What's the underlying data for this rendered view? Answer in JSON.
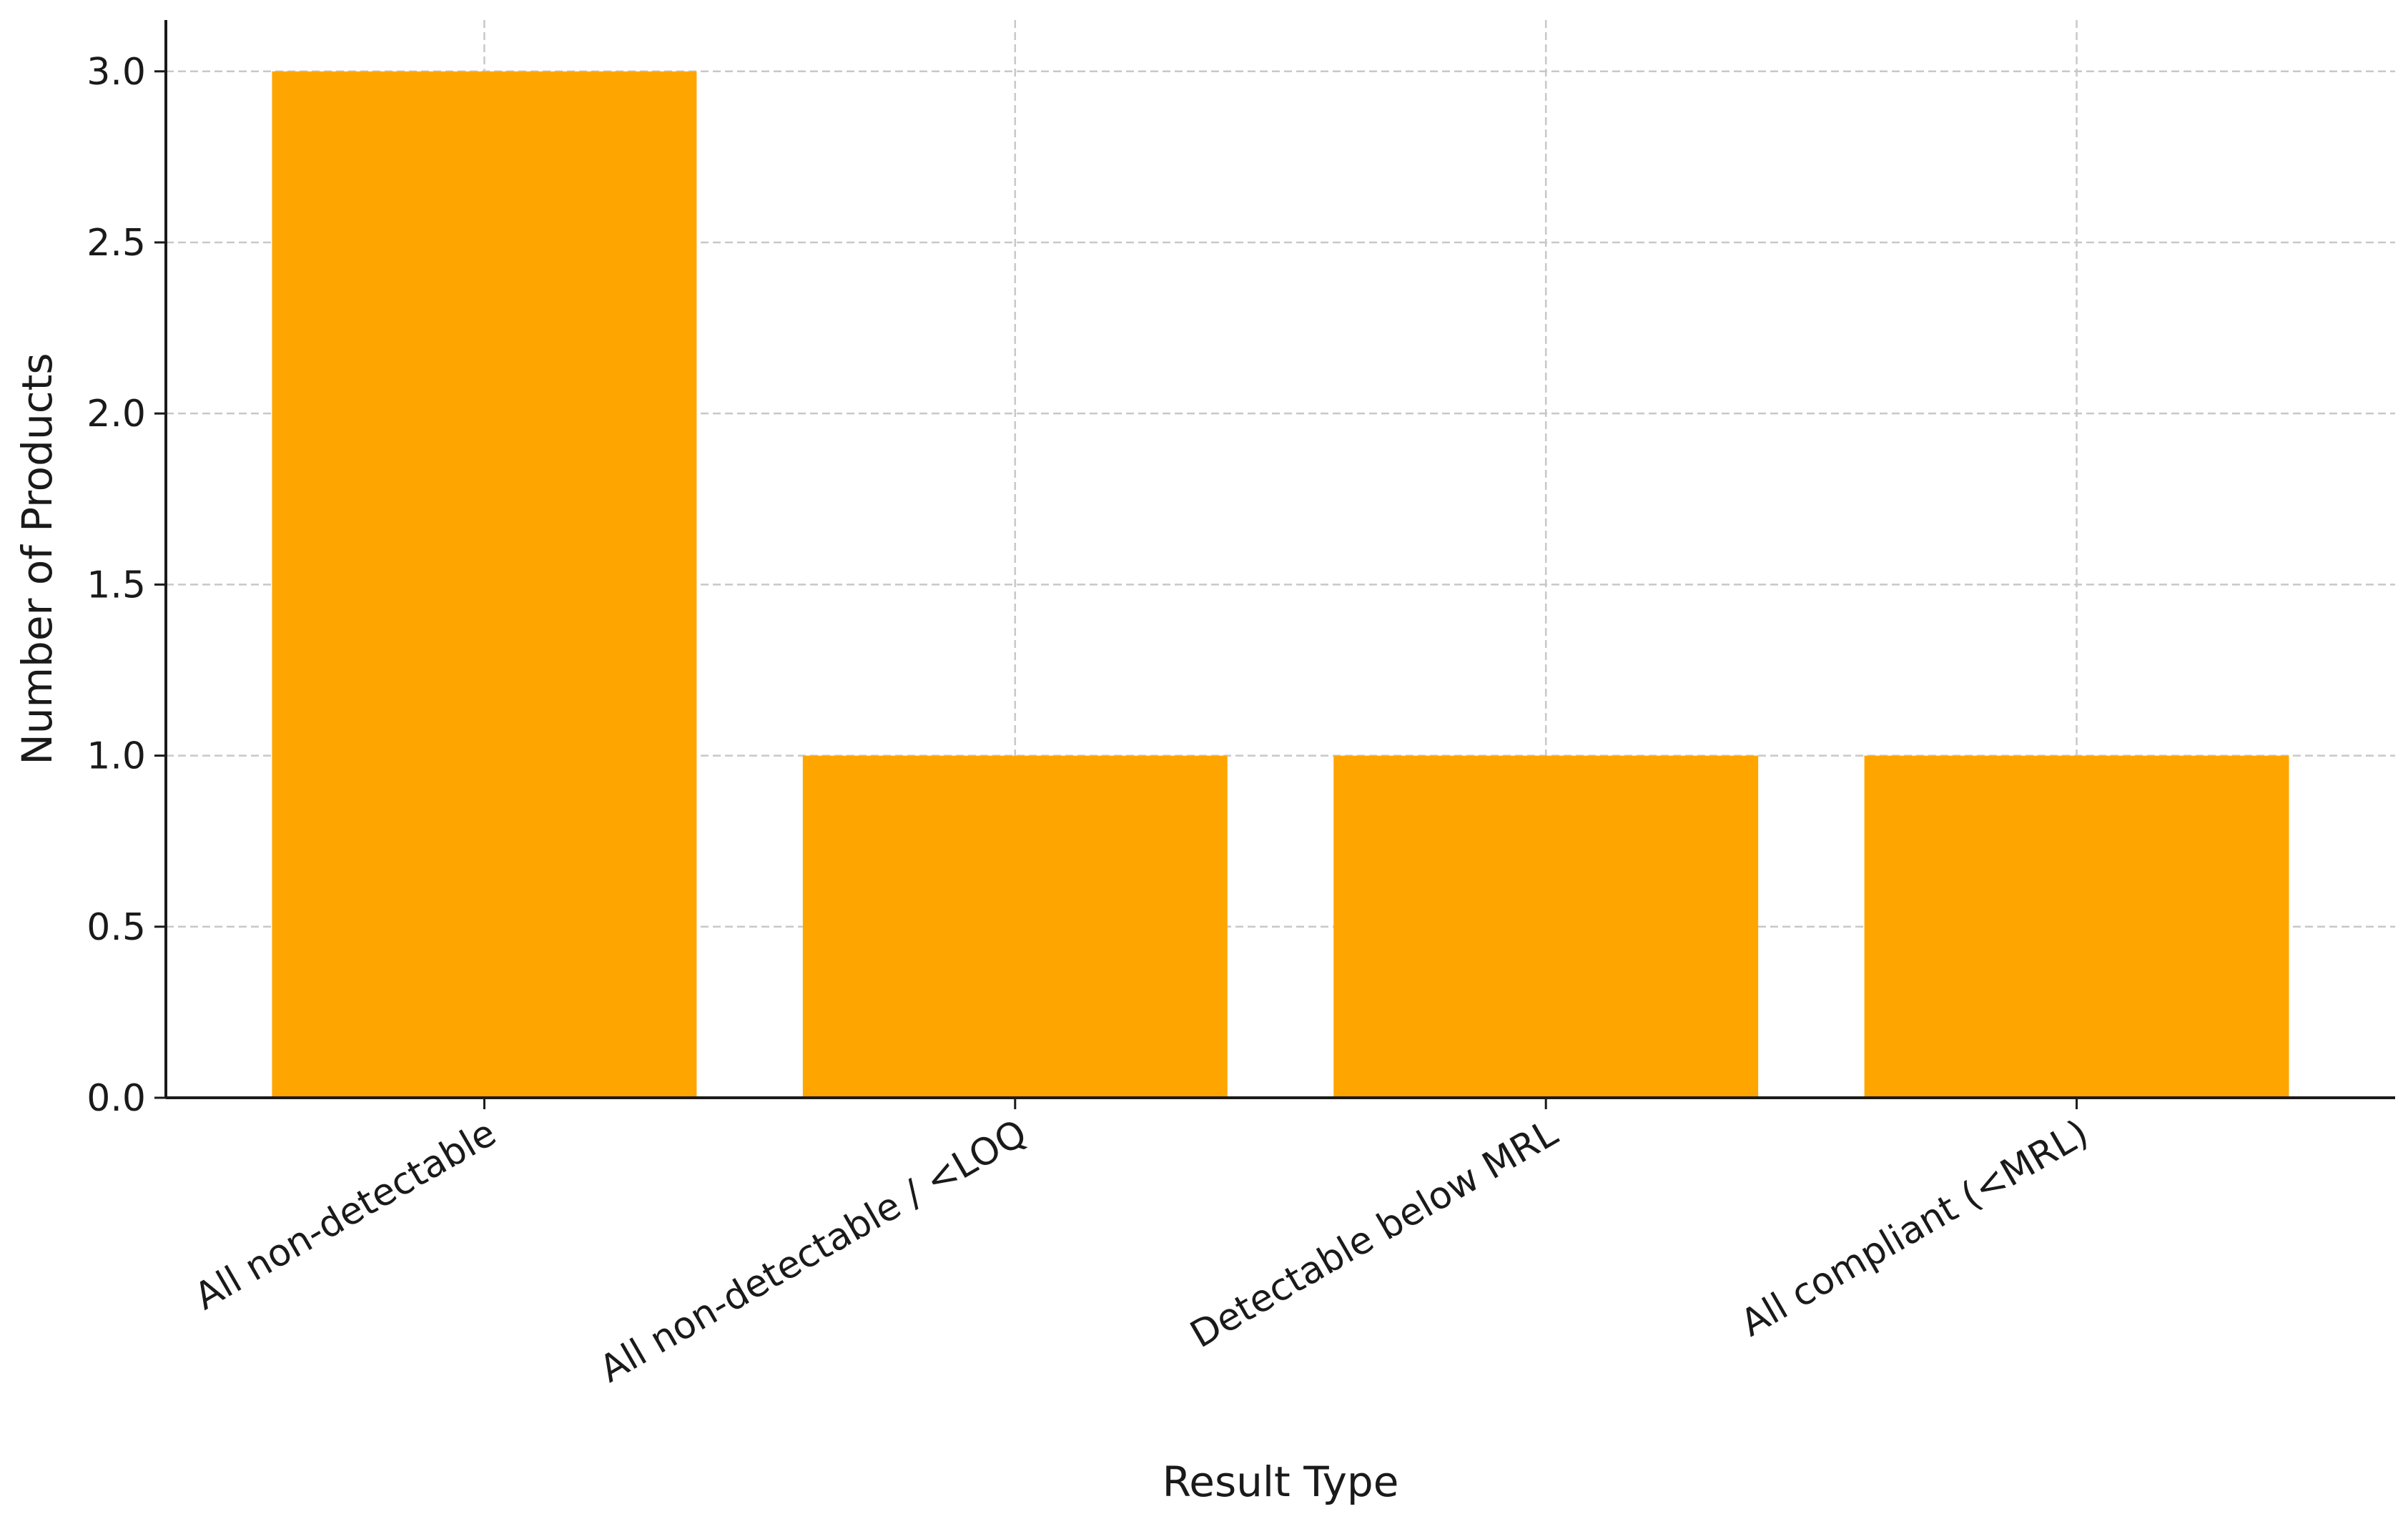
{
  "chart_data": {
    "type": "bar",
    "categories": [
      "All non-detectable",
      "All non-detectable / <LOQ",
      "Detectable below MRL",
      "All compliant (<MRL)"
    ],
    "values": [
      3,
      1,
      1,
      1
    ],
    "title": "",
    "xlabel": "Result Type",
    "ylabel": "Number of Products",
    "ylim": [
      0,
      3.15
    ],
    "yticks": [
      "0.0",
      "0.5",
      "1.0",
      "1.5",
      "2.0",
      "2.5",
      "3.0"
    ],
    "ytick_values": [
      0,
      0.5,
      1.0,
      1.5,
      2.0,
      2.5,
      3.0
    ],
    "grid": true,
    "legend": "none",
    "bar_color": "#FFA500"
  }
}
